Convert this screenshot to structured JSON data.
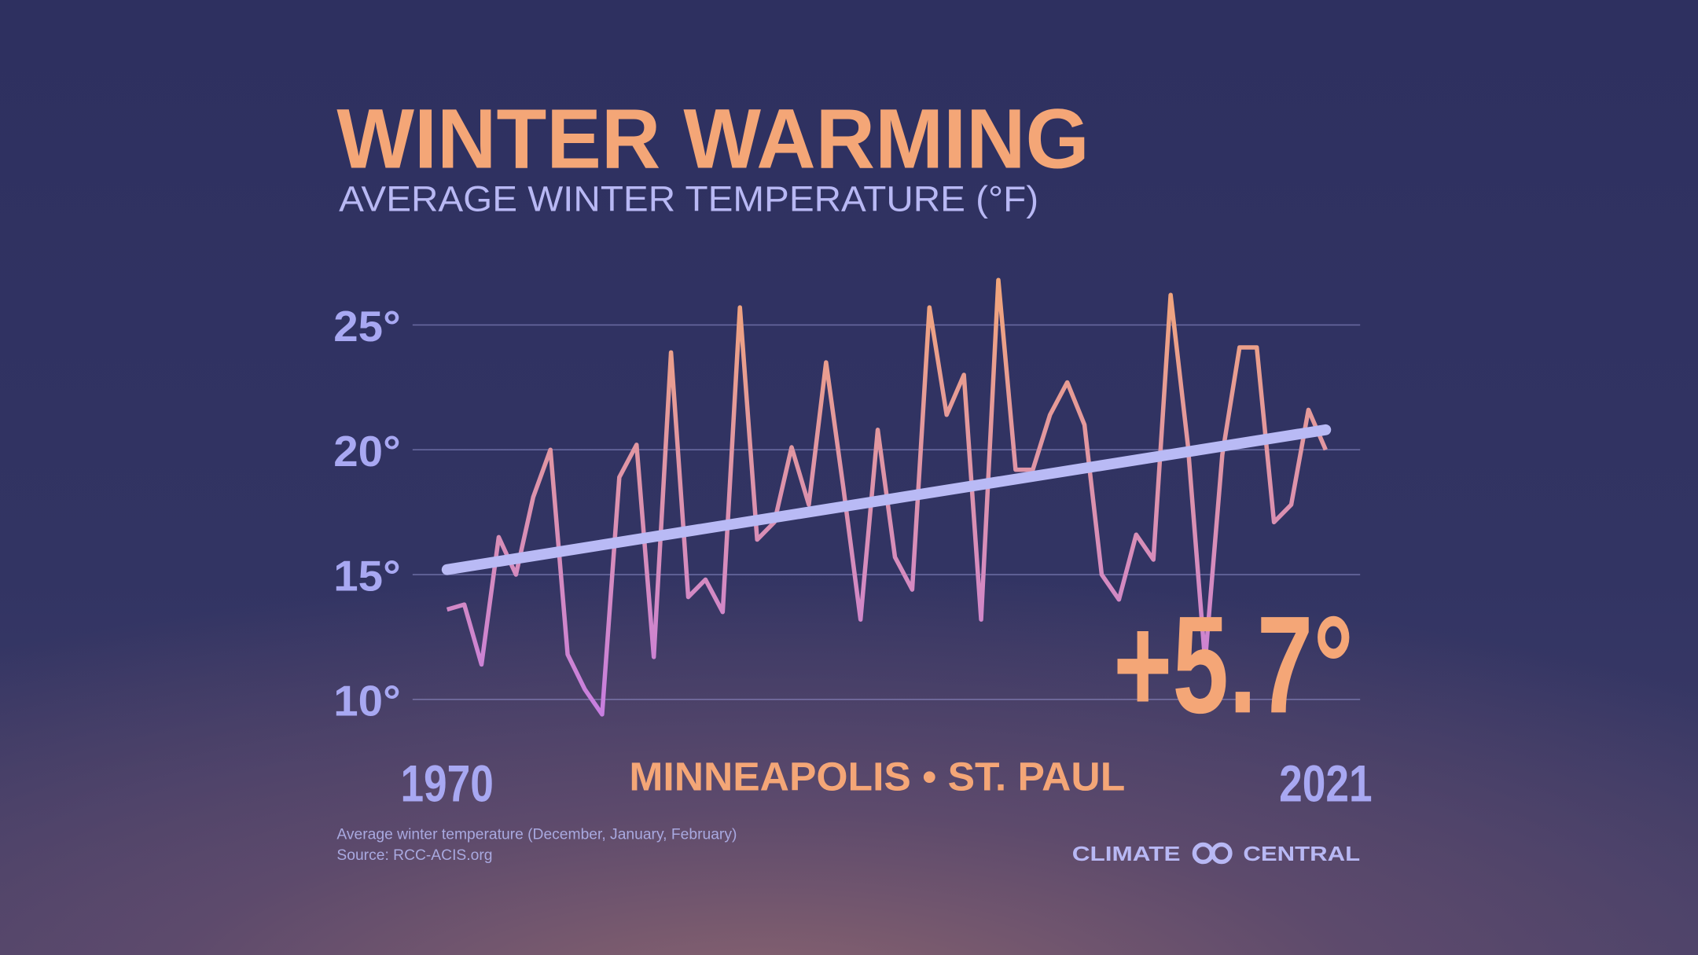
{
  "chart_data": {
    "type": "line",
    "title": "WINTER WARMING",
    "subtitle": "AVERAGE WINTER TEMPERATURE (°F)",
    "location": "MINNEAPOLIS • ST. PAUL",
    "annotation": "+5.7°",
    "notes": [
      "Average winter temperature (December, January, February)",
      "Source: RCC-ACIS.org"
    ],
    "brand": [
      "CLIMATE",
      "CENTRAL"
    ],
    "x": [
      1970,
      1971,
      1972,
      1973,
      1974,
      1975,
      1976,
      1977,
      1978,
      1979,
      1980,
      1981,
      1982,
      1983,
      1984,
      1985,
      1986,
      1987,
      1988,
      1989,
      1990,
      1991,
      1992,
      1993,
      1994,
      1995,
      1996,
      1997,
      1998,
      1999,
      2000,
      2001,
      2002,
      2003,
      2004,
      2005,
      2006,
      2007,
      2008,
      2009,
      2010,
      2011,
      2012,
      2013,
      2014,
      2015,
      2016,
      2017,
      2018,
      2019,
      2020,
      2021
    ],
    "values": [
      13.6,
      13.8,
      11.4,
      16.5,
      15.0,
      18.1,
      20.0,
      11.8,
      10.4,
      9.4,
      18.9,
      20.2,
      11.7,
      23.9,
      14.1,
      14.8,
      13.5,
      25.7,
      16.4,
      17.1,
      20.1,
      17.8,
      23.5,
      18.5,
      13.2,
      20.8,
      15.7,
      14.4,
      25.7,
      21.4,
      23.0,
      13.2,
      26.8,
      19.2,
      19.2,
      21.4,
      22.7,
      21.0,
      15.0,
      14.0,
      16.6,
      15.6,
      26.2,
      20.2,
      11.5,
      19.8,
      24.1,
      24.1,
      17.1,
      17.8,
      21.6,
      20.0
    ],
    "colors": [
      "#f2a67a",
      "#c77ee0"
    ],
    "trend": {
      "x": [
        1970,
        2021
      ],
      "values": [
        15.2,
        20.8
      ],
      "color": "#b9baf5"
    },
    "xlim": [
      1968,
      2023
    ],
    "xticks": [
      1970,
      2021
    ],
    "ylim": [
      9,
      27
    ],
    "yticks": [
      {
        "value": 10,
        "label": "10°"
      },
      {
        "value": 15,
        "label": "15°"
      },
      {
        "value": 20,
        "label": "20°"
      },
      {
        "value": 25,
        "label": "25°"
      }
    ],
    "grid": true
  }
}
